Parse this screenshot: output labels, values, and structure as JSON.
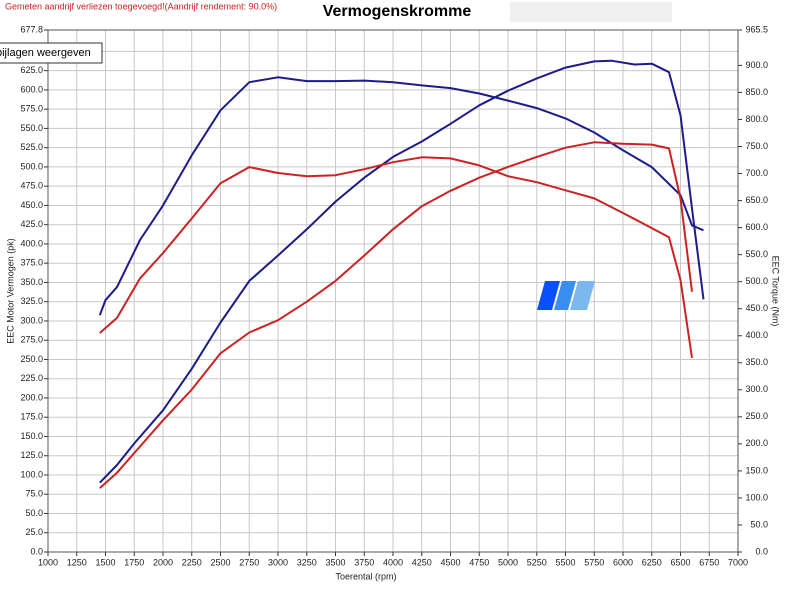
{
  "chart_data": {
    "type": "line",
    "title": "Vermogenskromme",
    "note": "Gemeten aandrijf verliezen toegevoegd!(Aandrijf rendement: 90.0%)",
    "tooltip": "bijlagen weergeven",
    "xlabel": "Toerental (rpm)",
    "ylabel": "EEC Motor Vermogen (pk)",
    "y2label": "EEC Torque (Nm)",
    "xlim": [
      1000,
      7000
    ],
    "xticks": [
      1000,
      1250,
      1500,
      1750,
      2000,
      2250,
      2500,
      2750,
      3000,
      3250,
      3500,
      3750,
      4000,
      4250,
      4500,
      4750,
      5000,
      5250,
      5500,
      5750,
      6000,
      6250,
      6500,
      6750,
      7000
    ],
    "ylim": [
      0,
      677.8
    ],
    "yticks": [
      {
        "value": 0,
        "label": "0.0"
      },
      {
        "value": 25,
        "label": "25.0"
      },
      {
        "value": 50,
        "label": "50.0"
      },
      {
        "value": 75,
        "label": "75.0"
      },
      {
        "value": 100,
        "label": "100.0"
      },
      {
        "value": 125,
        "label": "125.0"
      },
      {
        "value": 150,
        "label": "150.0"
      },
      {
        "value": 175,
        "label": "175.0"
      },
      {
        "value": 200,
        "label": "200.0"
      },
      {
        "value": 225,
        "label": "225.0"
      },
      {
        "value": 250,
        "label": "250.0"
      },
      {
        "value": 275,
        "label": "275.0"
      },
      {
        "value": 300,
        "label": "300.0"
      },
      {
        "value": 325,
        "label": "325.0"
      },
      {
        "value": 350,
        "label": "350.0"
      },
      {
        "value": 375,
        "label": "375.0"
      },
      {
        "value": 400,
        "label": "400.0"
      },
      {
        "value": 425,
        "label": "425.0"
      },
      {
        "value": 450,
        "label": "450.0"
      },
      {
        "value": 475,
        "label": "475.0"
      },
      {
        "value": 500,
        "label": "500.0"
      },
      {
        "value": 525,
        "label": "525.0"
      },
      {
        "value": 550,
        "label": "550.0"
      },
      {
        "value": 575,
        "label": "575.0"
      },
      {
        "value": 600,
        "label": "600.0"
      },
      {
        "value": 625,
        "label": "625.0"
      },
      {
        "value": 650,
        "label": "650.0"
      },
      677.8
    ],
    "y2lim": [
      0,
      965.5
    ],
    "y2ticks": [
      {
        "value": 0,
        "label": "0.0"
      },
      {
        "value": 50,
        "label": "50.0"
      },
      {
        "value": 100,
        "label": "100.0"
      },
      {
        "value": 150,
        "label": "150.0"
      },
      {
        "value": 200,
        "label": "200.0"
      },
      {
        "value": 250,
        "label": "250.0"
      },
      {
        "value": 300,
        "label": "300.0"
      },
      {
        "value": 350,
        "label": "350.0"
      },
      {
        "value": 400,
        "label": "400.0"
      },
      {
        "value": 450,
        "label": "450.0"
      },
      {
        "value": 500,
        "label": "500.0"
      },
      {
        "value": 550,
        "label": "550.0"
      },
      {
        "value": 600,
        "label": "600.0"
      },
      {
        "value": 650,
        "label": "650.0"
      },
      {
        "value": 700,
        "label": "700.0"
      },
      {
        "value": 750,
        "label": "750.0"
      },
      {
        "value": 800,
        "label": "800.0"
      },
      {
        "value": 850,
        "label": "850.0"
      },
      {
        "value": 900,
        "label": "900.0"
      },
      965.5
    ],
    "grid": true,
    "series": [
      {
        "color": "#1c1c8a",
        "x": [
          1450,
          1600,
          1750,
          2000,
          2250,
          2500,
          2750,
          3000,
          3250,
          3500,
          3750,
          4000,
          4250,
          4500,
          4750,
          5000,
          5250,
          5500,
          5750,
          5900,
          6100,
          6250,
          6400,
          6500,
          6600,
          6700
        ],
        "values": [
          90,
          113,
          141,
          184,
          238,
          298,
          352,
          385,
          419,
          455,
          486,
          513,
          533,
          556,
          580,
          599,
          615,
          629,
          637,
          638,
          633,
          634,
          623,
          567,
          446,
          328
        ]
      },
      {
        "color": "#1c1c8a",
        "axis": "y2",
        "x": [
          1450,
          1500,
          1600,
          1800,
          2000,
          2250,
          2500,
          2750,
          3000,
          3250,
          3500,
          3750,
          4000,
          4250,
          4500,
          4750,
          5000,
          5250,
          5500,
          5750,
          6000,
          6250,
          6500,
          6600,
          6700
        ],
        "values": [
          438,
          466,
          490,
          577,
          641,
          734,
          817,
          869,
          878,
          871,
          871,
          872,
          869,
          863,
          858,
          848,
          835,
          821,
          802,
          776,
          743,
          712,
          660,
          604,
          595
        ]
      },
      {
        "color": "#cc2222",
        "x": [
          1450,
          1600,
          1800,
          2000,
          2250,
          2500,
          2750,
          3000,
          3250,
          3500,
          3750,
          4000,
          4250,
          4500,
          4750,
          5000,
          5250,
          5500,
          5750,
          6000,
          6250,
          6400,
          6500,
          6600
        ],
        "values": [
          83,
          103,
          137,
          171,
          211,
          258,
          285,
          301,
          325,
          352,
          385,
          419,
          449,
          469,
          486,
          500,
          513,
          525,
          532,
          530,
          529,
          524,
          459,
          338
        ]
      },
      {
        "color": "#cc2222",
        "axis": "y2",
        "x": [
          1450,
          1600,
          1800,
          2000,
          2250,
          2500,
          2750,
          3000,
          3250,
          3500,
          3750,
          4000,
          4250,
          4500,
          4750,
          5000,
          5250,
          5500,
          5750,
          6000,
          6250,
          6400,
          6500,
          6600
        ],
        "values": [
          405,
          433,
          506,
          553,
          617,
          682,
          712,
          701,
          695,
          697,
          708,
          721,
          730,
          728,
          715,
          695,
          684,
          669,
          654,
          627,
          599,
          582,
          503,
          359
        ]
      }
    ]
  }
}
